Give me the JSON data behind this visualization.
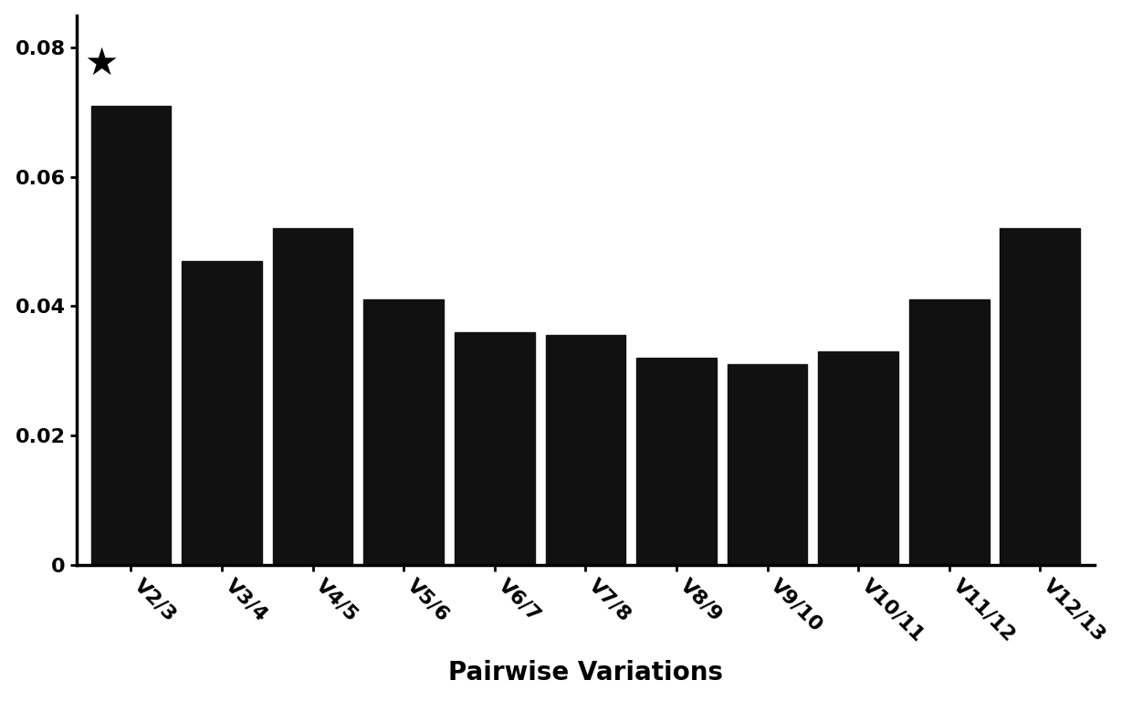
{
  "categories": [
    "V2/3",
    "V3/4",
    "V4/5",
    "V5/6",
    "V6/7",
    "V7/8",
    "V8/9",
    "V9/10",
    "V10/11",
    "V11/12",
    "V12/13"
  ],
  "values": [
    0.071,
    0.047,
    0.052,
    0.041,
    0.036,
    0.0355,
    0.032,
    0.031,
    0.033,
    0.041,
    0.052
  ],
  "bar_color": "#111111",
  "xlabel": "Pairwise Variations",
  "ylabel": "",
  "ylim": [
    0,
    0.085
  ],
  "yticks": [
    0,
    0.02,
    0.04,
    0.06,
    0.08
  ],
  "star_category": "V2/3",
  "star_marker": "★",
  "title": "",
  "background_color": "#ffffff",
  "xlabel_fontsize": 20,
  "xlabel_fontweight": "bold",
  "tick_fontsize": 16,
  "ytick_fontsize": 16,
  "star_fontsize": 30,
  "bar_width": 0.88,
  "spine_linewidth": 2.5,
  "tick_linewidth": 2.0,
  "label_rotation": -45,
  "label_ha": "left"
}
